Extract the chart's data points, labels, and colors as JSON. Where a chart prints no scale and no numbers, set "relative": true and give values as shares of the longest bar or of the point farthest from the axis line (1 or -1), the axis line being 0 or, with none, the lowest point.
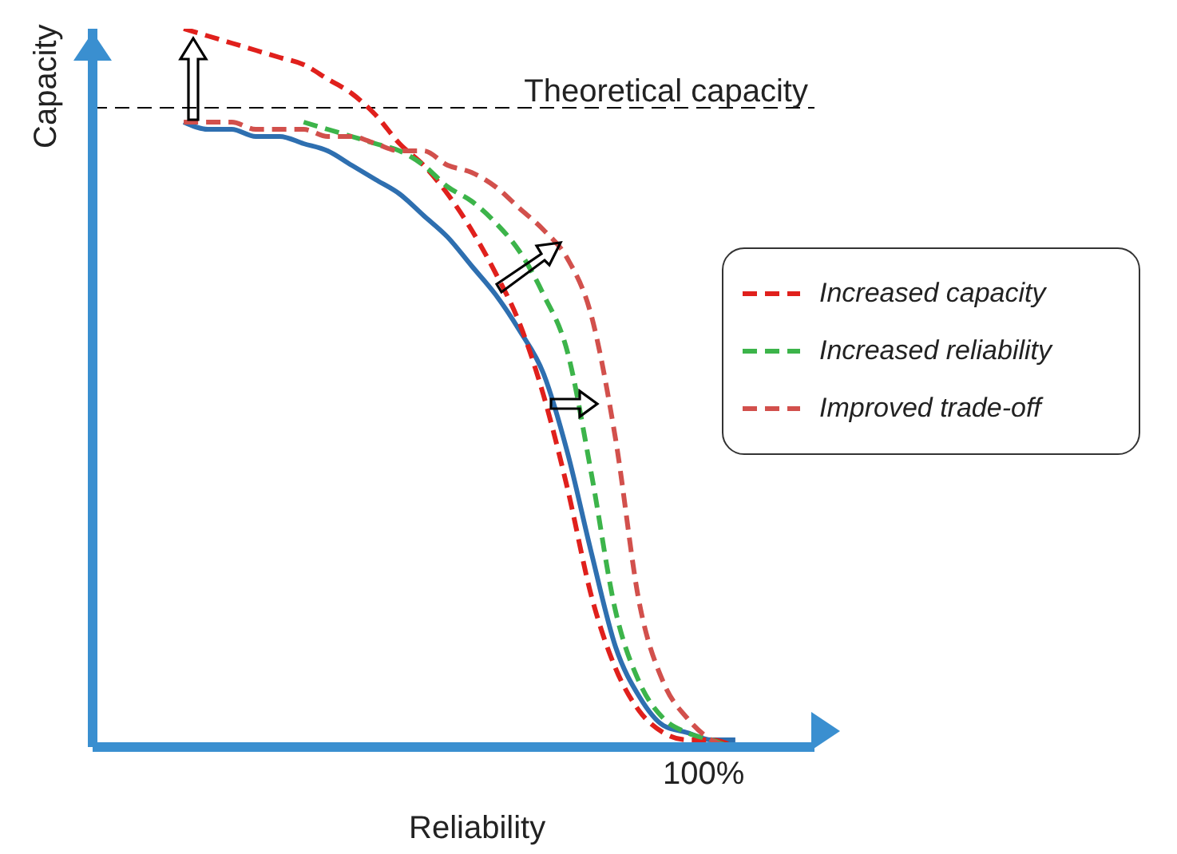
{
  "chart_data": {
    "type": "line",
    "relative": true,
    "xlabel": "Reliability",
    "ylabel": "Capacity",
    "categories": [
      null,
      null,
      null,
      null,
      null,
      null,
      null,
      null,
      null,
      null,
      null,
      null,
      null,
      null,
      null,
      null,
      null,
      null,
      null,
      null,
      null,
      null,
      null,
      null,
      null
    ],
    "series": [
      {
        "color": "#2e6fb0",
        "line_style": "solid",
        "values": [
          0.87,
          0.86,
          0.86,
          0.85,
          0.85,
          0.84,
          0.83,
          0.81,
          0.79,
          0.77,
          0.74,
          0.71,
          0.67,
          0.63,
          0.58,
          0.52,
          0.41,
          0.27,
          0.14,
          0.07,
          0.03,
          0.02,
          0.01,
          0.01,
          null
        ]
      },
      {
        "name": "Increased capacity",
        "color": "#e0201c",
        "line_style": "dashed",
        "values": [
          1,
          0.99,
          0.98,
          0.97,
          0.96,
          0.95,
          0.93,
          0.91,
          0.88,
          0.84,
          0.81,
          0.77,
          0.72,
          0.66,
          0.59,
          0.49,
          0.36,
          0.21,
          0.11,
          0.05,
          0.02,
          0.01,
          0.01,
          0,
          null
        ]
      },
      {
        "name": "Increased reliability",
        "color": "#3cb44a",
        "line_style": "dashed",
        "values": [
          null,
          null,
          null,
          null,
          null,
          0.87,
          0.86,
          0.85,
          0.84,
          0.83,
          0.81,
          0.78,
          0.76,
          0.73,
          0.69,
          0.63,
          0.55,
          0.38,
          0.19,
          0.09,
          0.04,
          0.02,
          0.01,
          0,
          0
        ]
      },
      {
        "name": "Improved trade-off",
        "color": "#d2504c",
        "line_style": "dashed",
        "values": [
          0.87,
          0.87,
          0.87,
          0.86,
          0.86,
          0.86,
          0.85,
          0.85,
          0.84,
          0.83,
          0.83,
          0.81,
          0.8,
          0.78,
          0.75,
          0.72,
          0.68,
          0.6,
          0.43,
          0.2,
          0.09,
          0.04,
          0.01,
          0,
          0
        ]
      }
    ],
    "ref_lines": [
      {
        "axis": "y",
        "value": 0.89,
        "label": "Theoretical capacity",
        "color": "#000000",
        "line_style": "dashed"
      }
    ],
    "annotations": [
      "100%"
    ],
    "legend": "right",
    "marker": "none",
    "grid": false
  }
}
